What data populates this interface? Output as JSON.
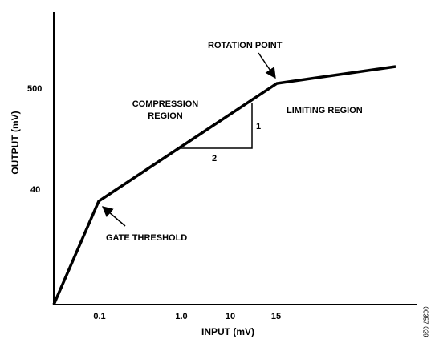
{
  "chart_data": {
    "type": "line",
    "title": "",
    "xlabel": "INPUT (mV)",
    "ylabel": "OUTPUT (mV)",
    "x_tick_labels": [
      "0.1",
      "1.0",
      "10",
      "15"
    ],
    "y_tick_labels": [
      "40",
      "500"
    ],
    "series": [
      {
        "points": [
          {
            "x": "0",
            "y": "0"
          },
          {
            "x": "0.1",
            "y": "40"
          },
          {
            "x": "15",
            "y": "500"
          },
          {
            "x": ">15",
            "y": ">500"
          }
        ]
      }
    ],
    "slope_triangle": {
      "rise_label": "1",
      "run_label": "2"
    },
    "annotations": {
      "rotation_point": "ROTATION POINT",
      "compression_region_line1": "COMPRESSION",
      "compression_region_line2": "REGION",
      "limiting_region": "LIMITING REGION",
      "gate_threshold": "GATE THRESHOLD"
    },
    "grid": false,
    "legend": "none"
  },
  "figure_id": "00357-029"
}
